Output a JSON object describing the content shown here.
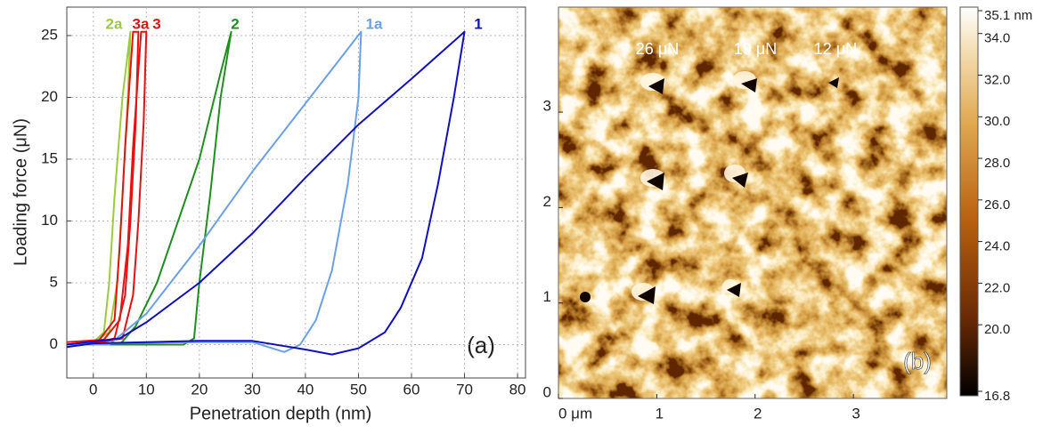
{
  "chart_data": [
    {
      "type": "line",
      "xlabel": "Penetration depth (nm)",
      "ylabel": "Loading force (μN)",
      "annotation": "(a)",
      "xlim": [
        -5,
        81.5
      ],
      "ylim": [
        -2.7,
        27.3
      ],
      "xticks": [
        0,
        10,
        20,
        30,
        40,
        50,
        60,
        70,
        80
      ],
      "yticks": [
        0,
        5,
        10,
        15,
        20,
        25
      ],
      "grid": true,
      "series": [
        {
          "name": "2a",
          "color": "#9ccc3c",
          "x": [
            -5,
            0,
            2,
            3,
            4,
            5.5,
            7,
            6.5,
            5.5,
            4.5,
            3,
            0,
            -5
          ],
          "values": [
            0,
            0.2,
            1,
            5,
            12,
            20,
            25.3,
            20,
            12,
            5,
            1,
            0.2,
            0
          ]
        },
        {
          "name": "3a",
          "color": "#e81010",
          "x": [
            -5,
            1,
            4,
            5,
            6,
            7.5,
            8.5,
            8,
            7,
            6,
            4,
            0,
            -5
          ],
          "values": [
            0,
            0.3,
            2,
            8,
            16,
            25.3,
            25.3,
            18,
            10,
            4,
            0.5,
            0.1,
            0
          ]
        },
        {
          "name": "3",
          "color": "#e81010",
          "x": [
            -5,
            2,
            5,
            6.5,
            7.5,
            9,
            10,
            9.5,
            8.5,
            7.5,
            5.5,
            0,
            -5
          ],
          "values": [
            0.2,
            0.4,
            2,
            8,
            16,
            25.3,
            25.3,
            18,
            10,
            4,
            0.5,
            0.1,
            0
          ]
        },
        {
          "name": "2",
          "color": "#1f8f1f",
          "x": [
            -5,
            5,
            8,
            12,
            16,
            20,
            24,
            26,
            24,
            22,
            20,
            19,
            17,
            10,
            0,
            -5
          ],
          "values": [
            0,
            0,
            1.5,
            5,
            10,
            15,
            22,
            25.3,
            20,
            12,
            5,
            0.5,
            0,
            0,
            0,
            0
          ]
        },
        {
          "name": "1a",
          "color": "#6aa0e8",
          "x": [
            -5,
            3,
            10,
            20,
            30,
            40,
            50.5,
            50,
            48,
            45,
            42,
            39,
            36,
            30,
            20,
            0,
            -5
          ],
          "values": [
            0,
            0,
            2.5,
            8,
            14,
            19.5,
            25.3,
            20,
            13,
            6,
            2,
            0,
            -0.6,
            0.2,
            0.2,
            0.1,
            0
          ]
        },
        {
          "name": "1",
          "color": "#1010c0",
          "x": [
            -5,
            5,
            10,
            20,
            30,
            40,
            50,
            60,
            70,
            68,
            65,
            62,
            58,
            55,
            50,
            45,
            40,
            30,
            20,
            10,
            0,
            -5
          ],
          "values": [
            0,
            0.5,
            1.8,
            5,
            9,
            13.5,
            17.8,
            21.5,
            25.3,
            20,
            13,
            7,
            3,
            1,
            -0.3,
            -0.8,
            -0.4,
            0.3,
            0.3,
            0.2,
            0.1,
            -0.2
          ]
        }
      ]
    },
    {
      "type": "image",
      "annotation": "(b)",
      "xlim": [
        0,
        3.95
      ],
      "ylim": [
        0,
        4.1
      ],
      "xticks": [
        {
          "value": 0,
          "label": "0 μm"
        },
        1,
        2,
        3
      ],
      "yticks": [
        0,
        1,
        2,
        3
      ],
      "labels": [
        "26 μN",
        "19 μN",
        "12 μN"
      ],
      "clim": [
        16.8,
        35.1
      ],
      "cticks": [
        {
          "value": 35.1,
          "label": "35.1 nm"
        },
        {
          "value": 34,
          "label": "34.0"
        },
        {
          "value": 32,
          "label": "32.0"
        },
        {
          "value": 30,
          "label": "30.0"
        },
        {
          "value": 28,
          "label": "28.0"
        },
        {
          "value": 26,
          "label": "26.0"
        },
        {
          "value": 24,
          "label": "24.0"
        },
        {
          "value": 22,
          "label": "22.0"
        },
        {
          "value": 20,
          "label": "20.0"
        },
        {
          "value": 16.8,
          "label": "16.8"
        }
      ]
    }
  ]
}
